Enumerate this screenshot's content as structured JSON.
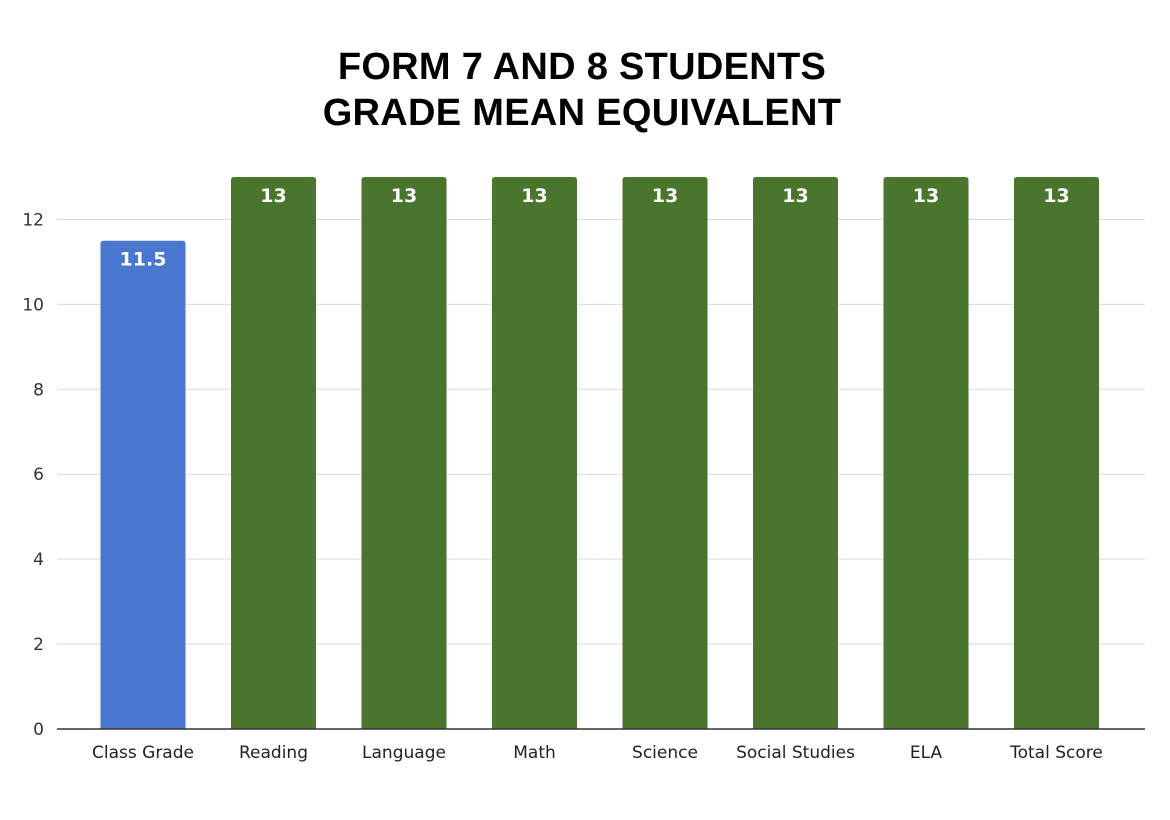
{
  "chart_data": {
    "type": "bar",
    "title_lines": [
      "FORM 7 AND 8 STUDENTS",
      "GRADE MEAN EQUIVALENT"
    ],
    "categories": [
      "Class Grade",
      "Reading",
      "Language",
      "Math",
      "Science",
      "Social Studies",
      "ELA",
      "Total Score"
    ],
    "values": [
      11.5,
      13,
      13,
      13,
      13,
      13,
      13,
      13
    ],
    "data_labels": [
      "11.5",
      "13",
      "13",
      "13",
      "13",
      "13",
      "13",
      "13"
    ],
    "bar_colors": [
      "#4a78d1",
      "#49752c",
      "#49752c",
      "#49752c",
      "#49752c",
      "#49752c",
      "#49752c",
      "#49752c"
    ],
    "y_ticks": [
      0,
      2,
      4,
      6,
      8,
      10,
      12
    ],
    "ylim": [
      0,
      13
    ],
    "xlabel": "",
    "ylabel": "",
    "grid": true,
    "legend": "none"
  }
}
